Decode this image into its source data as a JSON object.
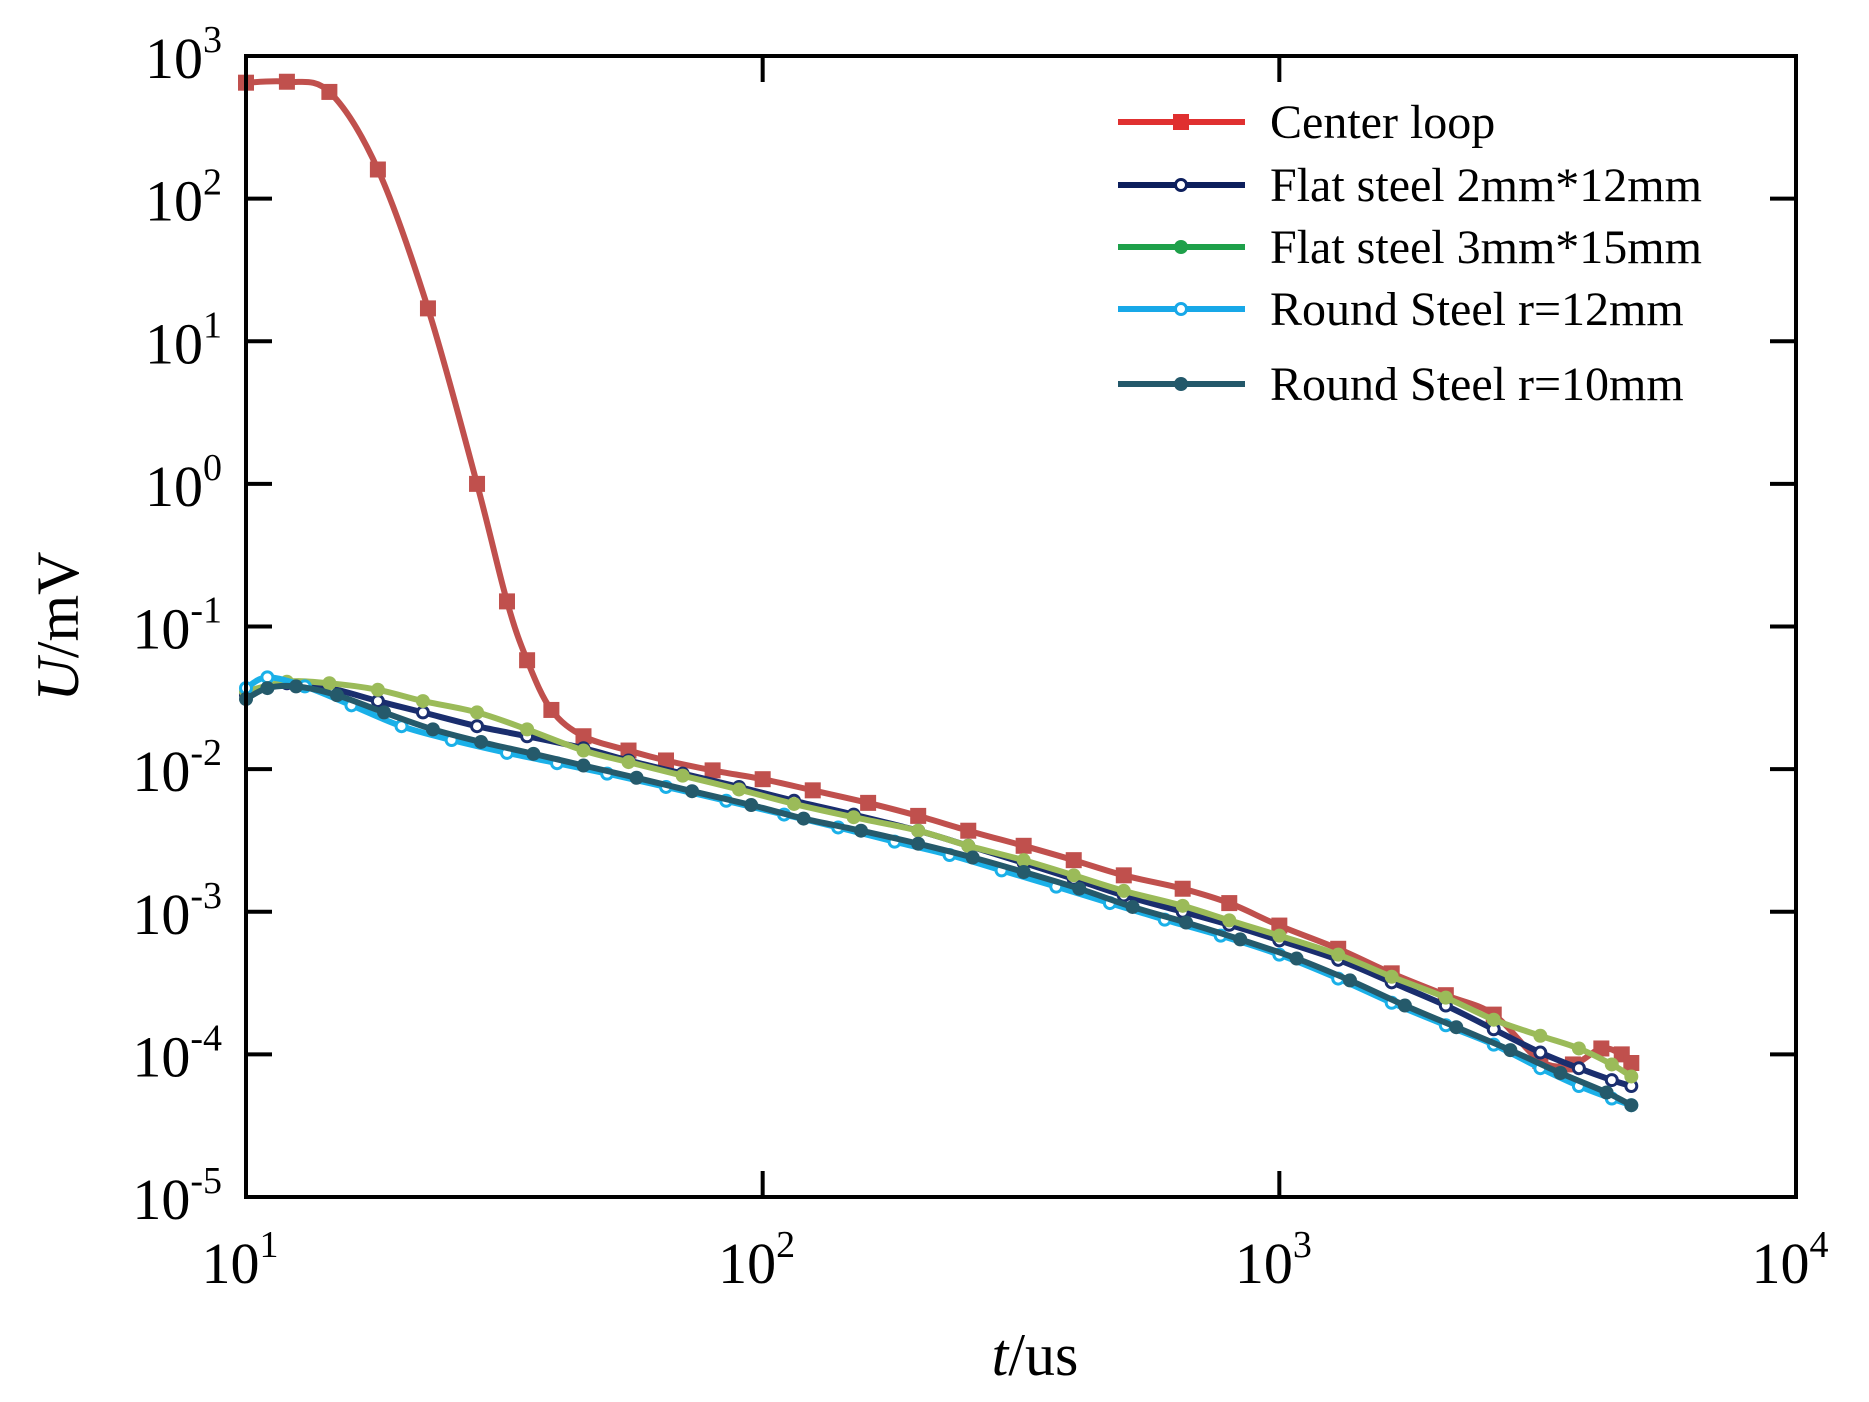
{
  "chart_data": {
    "type": "line",
    "title": "",
    "xscale": "log",
    "yscale": "log",
    "xlim": [
      10,
      10000
    ],
    "ylim": [
      1e-05,
      1000
    ],
    "xlabel": {
      "italic": "t",
      "rest": "/us"
    },
    "ylabel": {
      "italic": "U",
      "rest": "/mV"
    },
    "xticks": [
      {
        "base": "10",
        "exp": "1"
      },
      {
        "base": "10",
        "exp": "2"
      },
      {
        "base": "10",
        "exp": "3"
      },
      {
        "base": "10",
        "exp": "4"
      }
    ],
    "yticks": [
      {
        "base": "10",
        "exp": "-5"
      },
      {
        "base": "10",
        "exp": "-4"
      },
      {
        "base": "10",
        "exp": "-3"
      },
      {
        "base": "10",
        "exp": "-2"
      },
      {
        "base": "10",
        "exp": "-1"
      },
      {
        "base": "10",
        "exp": "0"
      },
      {
        "base": "10",
        "exp": "1"
      },
      {
        "base": "10",
        "exp": "2"
      },
      {
        "base": "10",
        "exp": "3"
      }
    ],
    "legend_position": "top-right",
    "series": [
      {
        "name": "Center loop",
        "line_color": "#c0504d",
        "legend_color": "#e03030",
        "marker": "square",
        "x": [
          10,
          12,
          14.5,
          18,
          22.5,
          28,
          32,
          35,
          39,
          45,
          55,
          65,
          80,
          100,
          125,
          160,
          200,
          250,
          320,
          400,
          500,
          650,
          800,
          1000,
          1300,
          1650,
          2100,
          2600,
          3200,
          3700,
          4200,
          4600,
          4800
        ],
        "y": [
          650,
          660,
          560,
          160,
          17,
          1.0,
          0.15,
          0.058,
          0.026,
          0.017,
          0.0135,
          0.0115,
          0.0098,
          0.0085,
          0.0071,
          0.0058,
          0.0047,
          0.0037,
          0.0029,
          0.0023,
          0.0018,
          0.00145,
          0.00115,
          0.0008,
          0.00055,
          0.00037,
          0.00026,
          0.00019,
          9e-05,
          8.5e-05,
          0.00011,
          0.0001,
          8.7e-05
        ]
      },
      {
        "name": "Flat steel 2mm*12mm",
        "line_color": "#1a2e6e",
        "legend_color": "#0d1f5c",
        "marker": "circle-open",
        "x": [
          10,
          12,
          14.5,
          18,
          22,
          28,
          35,
          45,
          55,
          70,
          90,
          115,
          150,
          200,
          250,
          320,
          400,
          500,
          650,
          800,
          1000,
          1300,
          1650,
          2100,
          2600,
          3200,
          3800,
          4400,
          4800
        ],
        "y": [
          0.033,
          0.04,
          0.037,
          0.03,
          0.025,
          0.02,
          0.017,
          0.014,
          0.0115,
          0.0093,
          0.0075,
          0.006,
          0.0048,
          0.0037,
          0.0029,
          0.0022,
          0.0017,
          0.0013,
          0.001,
          0.00081,
          0.00063,
          0.00046,
          0.00032,
          0.00022,
          0.00015,
          0.000103,
          8e-05,
          6.6e-05,
          6e-05
        ]
      },
      {
        "name": "Flat steel 3mm*15mm",
        "line_color": "#9bbb59",
        "legend_color": "#1ea04a",
        "marker": "circle-filled",
        "x": [
          10,
          12,
          14.5,
          18,
          22,
          28,
          35,
          45,
          55,
          70,
          90,
          115,
          150,
          200,
          250,
          320,
          400,
          500,
          650,
          800,
          1000,
          1300,
          1650,
          2100,
          2600,
          3200,
          3800,
          4400,
          4800
        ],
        "y": [
          0.035,
          0.041,
          0.04,
          0.036,
          0.03,
          0.025,
          0.019,
          0.0135,
          0.0112,
          0.009,
          0.0072,
          0.0057,
          0.0046,
          0.0037,
          0.0029,
          0.0023,
          0.0018,
          0.0014,
          0.0011,
          0.00087,
          0.00068,
          0.0005,
          0.00035,
          0.00025,
          0.000175,
          0.000135,
          0.00011,
          8.5e-05,
          7e-05
        ]
      },
      {
        "name": "Round Steel r=12mm",
        "line_color": "#1ab0e8",
        "legend_color": "#18a8e8",
        "marker": "circle-open",
        "x": [
          10,
          11,
          13,
          16,
          20,
          25,
          32,
          40,
          50,
          65,
          85,
          110,
          140,
          180,
          230,
          290,
          370,
          470,
          600,
          770,
          1000,
          1300,
          1650,
          2100,
          2600,
          3200,
          3800,
          4400,
          4800
        ],
        "y": [
          0.037,
          0.044,
          0.038,
          0.028,
          0.02,
          0.016,
          0.013,
          0.011,
          0.0093,
          0.0075,
          0.006,
          0.0048,
          0.0039,
          0.0031,
          0.0025,
          0.00195,
          0.0015,
          0.00115,
          0.00088,
          0.00068,
          0.0005,
          0.00034,
          0.00023,
          0.00016,
          0.000117,
          8e-05,
          6e-05,
          4.9e-05,
          4.4e-05
        ]
      },
      {
        "name": "Round Steel r=10mm",
        "line_color": "#255a6b",
        "legend_color": "#23586a",
        "marker": "circle-filled",
        "x": [
          10,
          11,
          12.5,
          15,
          18.5,
          23,
          28.5,
          36,
          45,
          57,
          73,
          95,
          120,
          155,
          200,
          255,
          320,
          410,
          520,
          660,
          840,
          1080,
          1370,
          1750,
          2200,
          2800,
          3500,
          4300,
          4800
        ],
        "y": [
          0.031,
          0.037,
          0.038,
          0.033,
          0.025,
          0.019,
          0.0155,
          0.0128,
          0.0106,
          0.0087,
          0.007,
          0.0056,
          0.0045,
          0.0037,
          0.003,
          0.0024,
          0.0019,
          0.00145,
          0.00108,
          0.00084,
          0.00064,
          0.00047,
          0.00033,
          0.00022,
          0.000155,
          0.000107,
          7.4e-05,
          5.4e-05,
          4.4e-05
        ]
      }
    ]
  }
}
